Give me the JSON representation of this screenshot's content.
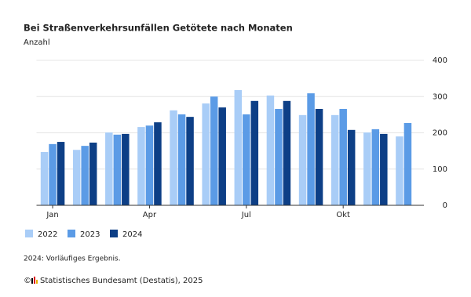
{
  "chart_data": {
    "type": "bar",
    "title": "Bei Straßenverkehrsunfällen Getötete nach Monaten",
    "subtitle": "Anzahl",
    "categories": [
      "Jan",
      null,
      null,
      "Apr",
      null,
      null,
      "Jul",
      null,
      null,
      "Okt",
      null,
      null
    ],
    "series": [
      {
        "name": "2022",
        "color": "#a9cdf7",
        "values": [
          147,
          153,
          201,
          216,
          262,
          281,
          318,
          303,
          249,
          249,
          201,
          190
        ]
      },
      {
        "name": "2023",
        "color": "#5b9be6",
        "values": [
          169,
          164,
          195,
          220,
          251,
          300,
          251,
          266,
          309,
          266,
          210,
          227
        ]
      },
      {
        "name": "2024",
        "color": "#0d3f86",
        "values": [
          175,
          173,
          197,
          229,
          244,
          270,
          288,
          288,
          266,
          208,
          197,
          null
        ]
      }
    ],
    "ylim": [
      0,
      400
    ],
    "yticks": [
      0,
      100,
      200,
      300,
      400
    ],
    "grid": true,
    "note": "2024: Vorläufiges Ergebnis.",
    "source": "Statistisches Bundesamt (Destatis), 2025",
    "copyright": "©"
  }
}
